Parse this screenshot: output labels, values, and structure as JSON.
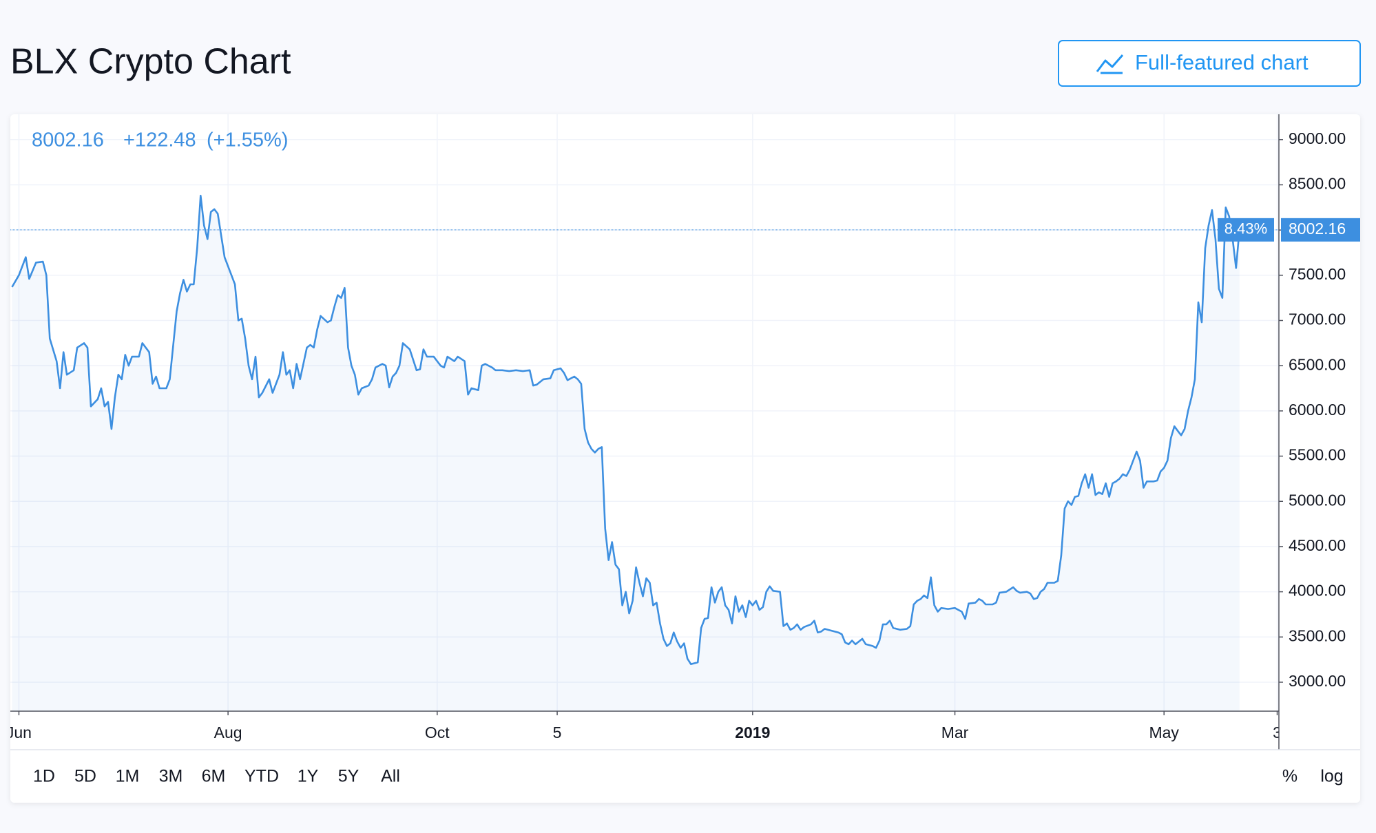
{
  "header": {
    "title": "BLX Crypto Chart",
    "button": "Full-featured chart"
  },
  "range_buttons": [
    "1D",
    "5D",
    "1M",
    "3M",
    "6M",
    "YTD",
    "1Y",
    "5Y",
    "All"
  ],
  "scale_buttons": [
    "%",
    "log"
  ],
  "chart_data": {
    "type": "line",
    "legend": {
      "value": "8002.16",
      "change": "+122.48",
      "change_pct": "(+1.55%)"
    },
    "price_line": {
      "value": 8002.16,
      "label": "8002.16",
      "change_label": "8.43%"
    },
    "color": "#3d8fe0",
    "grid": true,
    "xlim": [
      -2.5,
      367.5
    ],
    "xticks": [
      {
        "value": 0,
        "label": "Jun"
      },
      {
        "value": 61,
        "label": "Aug"
      },
      {
        "value": 122,
        "label": "Oct"
      },
      {
        "value": 157,
        "label": "5"
      },
      {
        "value": 214,
        "label": "2019"
      },
      {
        "value": 273,
        "label": "Mar"
      },
      {
        "value": 334,
        "label": "May"
      },
      {
        "value": 367,
        "label": "3"
      }
    ],
    "ylim": [
      2680,
      9280
    ],
    "yticks": [
      {
        "value": 3000,
        "label": "3000.00"
      },
      {
        "value": 3500,
        "label": "3500.00"
      },
      {
        "value": 4000,
        "label": "4000.00"
      },
      {
        "value": 4500,
        "label": "4500.00"
      },
      {
        "value": 5000,
        "label": "5000.00"
      },
      {
        "value": 5500,
        "label": "5500.00"
      },
      {
        "value": 6000,
        "label": "6000.00"
      },
      {
        "value": 6500,
        "label": "6500.00"
      },
      {
        "value": 7000,
        "label": "7000.00"
      },
      {
        "value": 7500,
        "label": "7500.00"
      },
      {
        "value": 8000,
        "label": "8000.00"
      },
      {
        "value": 8500,
        "label": "8500.00"
      },
      {
        "value": 9000,
        "label": "9000.00"
      }
    ],
    "x": [
      -2,
      0,
      2,
      3,
      5,
      7,
      8,
      9,
      11,
      12,
      13,
      14,
      16,
      17,
      19,
      20,
      21,
      23,
      24,
      25,
      26,
      27,
      28,
      29,
      30,
      31,
      32,
      33,
      35,
      36,
      38,
      39,
      40,
      41,
      43,
      44,
      46,
      47,
      48,
      49,
      50,
      51,
      52,
      53,
      54,
      55,
      56,
      57,
      58,
      60,
      62,
      63,
      64,
      65,
      66,
      67,
      68,
      69,
      70,
      71,
      73,
      74,
      75,
      76,
      77,
      78,
      79,
      80,
      81,
      82,
      84,
      85,
      86,
      87,
      88,
      90,
      91,
      92,
      93,
      94,
      95,
      96,
      97,
      98,
      99,
      100,
      102,
      103,
      104,
      106,
      107,
      108,
      109,
      110,
      111,
      112,
      114,
      116,
      117,
      118,
      119,
      121,
      123,
      124,
      125,
      127,
      128,
      130,
      131,
      132,
      134,
      135,
      136,
      138,
      139,
      141,
      143,
      145,
      147,
      149,
      150,
      151,
      153,
      155,
      156,
      158,
      159,
      160,
      162,
      163,
      164,
      165,
      166,
      167,
      168,
      169,
      170,
      171,
      172,
      173,
      174,
      175,
      176,
      177,
      178,
      179,
      180,
      181,
      182,
      183,
      184,
      185,
      186,
      187,
      188,
      189,
      190,
      191,
      192,
      193,
      194,
      195,
      196,
      198,
      199,
      200,
      201,
      202,
      203,
      204,
      205,
      206,
      207,
      208,
      209,
      210,
      211,
      212,
      213,
      214,
      215,
      216,
      217,
      218,
      219,
      220,
      222,
      223,
      224,
      225,
      226,
      227,
      228,
      229,
      231,
      232,
      233,
      234,
      235,
      237,
      239,
      240,
      241,
      242,
      243,
      244,
      246,
      247,
      249,
      250,
      251,
      252,
      253,
      254,
      255,
      257,
      259,
      260,
      261,
      262,
      263,
      264,
      265,
      266,
      267,
      268,
      269,
      271,
      273,
      274,
      275,
      276,
      277,
      279,
      280,
      281,
      282,
      284,
      285,
      286,
      288,
      290,
      291,
      292,
      294,
      295,
      296,
      297,
      298,
      299,
      300,
      302,
      303,
      304,
      305,
      306,
      307,
      308,
      309,
      310,
      311,
      312,
      313,
      314,
      315,
      316,
      317,
      318,
      319,
      320,
      321,
      322,
      323,
      324,
      325,
      326,
      327,
      328,
      329,
      331,
      332,
      333,
      334,
      335,
      336,
      337,
      338,
      339,
      340,
      341,
      342,
      343,
      344,
      345,
      346,
      347,
      348,
      349,
      350,
      351,
      352,
      353,
      354,
      355,
      356
    ],
    "values": [
      7370,
      7500,
      7700,
      7460,
      7640,
      7650,
      7500,
      6800,
      6550,
      6250,
      6650,
      6400,
      6450,
      6700,
      6750,
      6700,
      6050,
      6130,
      6250,
      6050,
      6100,
      5800,
      6150,
      6400,
      6350,
      6620,
      6500,
      6600,
      6600,
      6750,
      6650,
      6300,
      6380,
      6250,
      6250,
      6350,
      7100,
      7300,
      7450,
      7320,
      7400,
      7400,
      7800,
      8380,
      8050,
      7900,
      8200,
      8230,
      8180,
      7700,
      7500,
      7400,
      7000,
      7020,
      6800,
      6500,
      6350,
      6600,
      6150,
      6200,
      6350,
      6200,
      6300,
      6400,
      6650,
      6400,
      6450,
      6250,
      6520,
      6350,
      6700,
      6730,
      6700,
      6900,
      7050,
      6980,
      7000,
      7150,
      7280,
      7250,
      7360,
      6700,
      6500,
      6400,
      6180,
      6250,
      6280,
      6350,
      6480,
      6520,
      6500,
      6260,
      6380,
      6420,
      6500,
      6750,
      6680,
      6450,
      6460,
      6680,
      6600,
      6600,
      6500,
      6480,
      6600,
      6550,
      6600,
      6550,
      6180,
      6250,
      6230,
      6500,
      6520,
      6480,
      6450,
      6450,
      6440,
      6450,
      6440,
      6450,
      6280,
      6290,
      6350,
      6360,
      6450,
      6470,
      6420,
      6340,
      6380,
      6350,
      6300,
      5800,
      5650,
      5580,
      5540,
      5580,
      5600,
      4700,
      4350,
      4550,
      4300,
      4250,
      3850,
      4000,
      3760,
      3900,
      4270,
      4100,
      3950,
      4150,
      4100,
      3850,
      3880,
      3650,
      3480,
      3400,
      3430,
      3550,
      3450,
      3380,
      3430,
      3260,
      3200,
      3220,
      3600,
      3700,
      3710,
      4050,
      3880,
      4000,
      4050,
      3850,
      3800,
      3650,
      3950,
      3780,
      3850,
      3720,
      3900,
      3850,
      3900,
      3800,
      3830,
      4000,
      4060,
      4010,
      4000,
      3620,
      3650,
      3580,
      3600,
      3640,
      3580,
      3610,
      3640,
      3680,
      3550,
      3560,
      3590,
      3570,
      3550,
      3530,
      3440,
      3420,
      3460,
      3420,
      3480,
      3420,
      3400,
      3380,
      3460,
      3640,
      3640,
      3680,
      3600,
      3580,
      3590,
      3620,
      3860,
      3900,
      3920,
      3960,
      3930,
      4160,
      3850,
      3780,
      3820,
      3810,
      3820,
      3800,
      3780,
      3700,
      3870,
      3880,
      3920,
      3900,
      3860,
      3860,
      3880,
      3990,
      4000,
      4050,
      4010,
      3990,
      4000,
      3980,
      3920,
      3930,
      4000,
      4030,
      4100,
      4100,
      4120,
      4400,
      4920,
      5000,
      4960,
      5050,
      5060,
      5200,
      5300,
      5150,
      5300,
      5070,
      5100,
      5080,
      5200,
      5050,
      5200,
      5220,
      5250,
      5300,
      5280,
      5350,
      5450,
      5550,
      5450,
      5150,
      5220,
      5220,
      5230,
      5330,
      5370,
      5450,
      5700,
      5830,
      5780,
      5730,
      5800,
      6000,
      6150,
      6350,
      7200,
      6980,
      7800,
      8050,
      8220,
      7900,
      7350,
      7250,
      8250,
      8150,
      7900,
      7580,
      8002.16
    ]
  }
}
